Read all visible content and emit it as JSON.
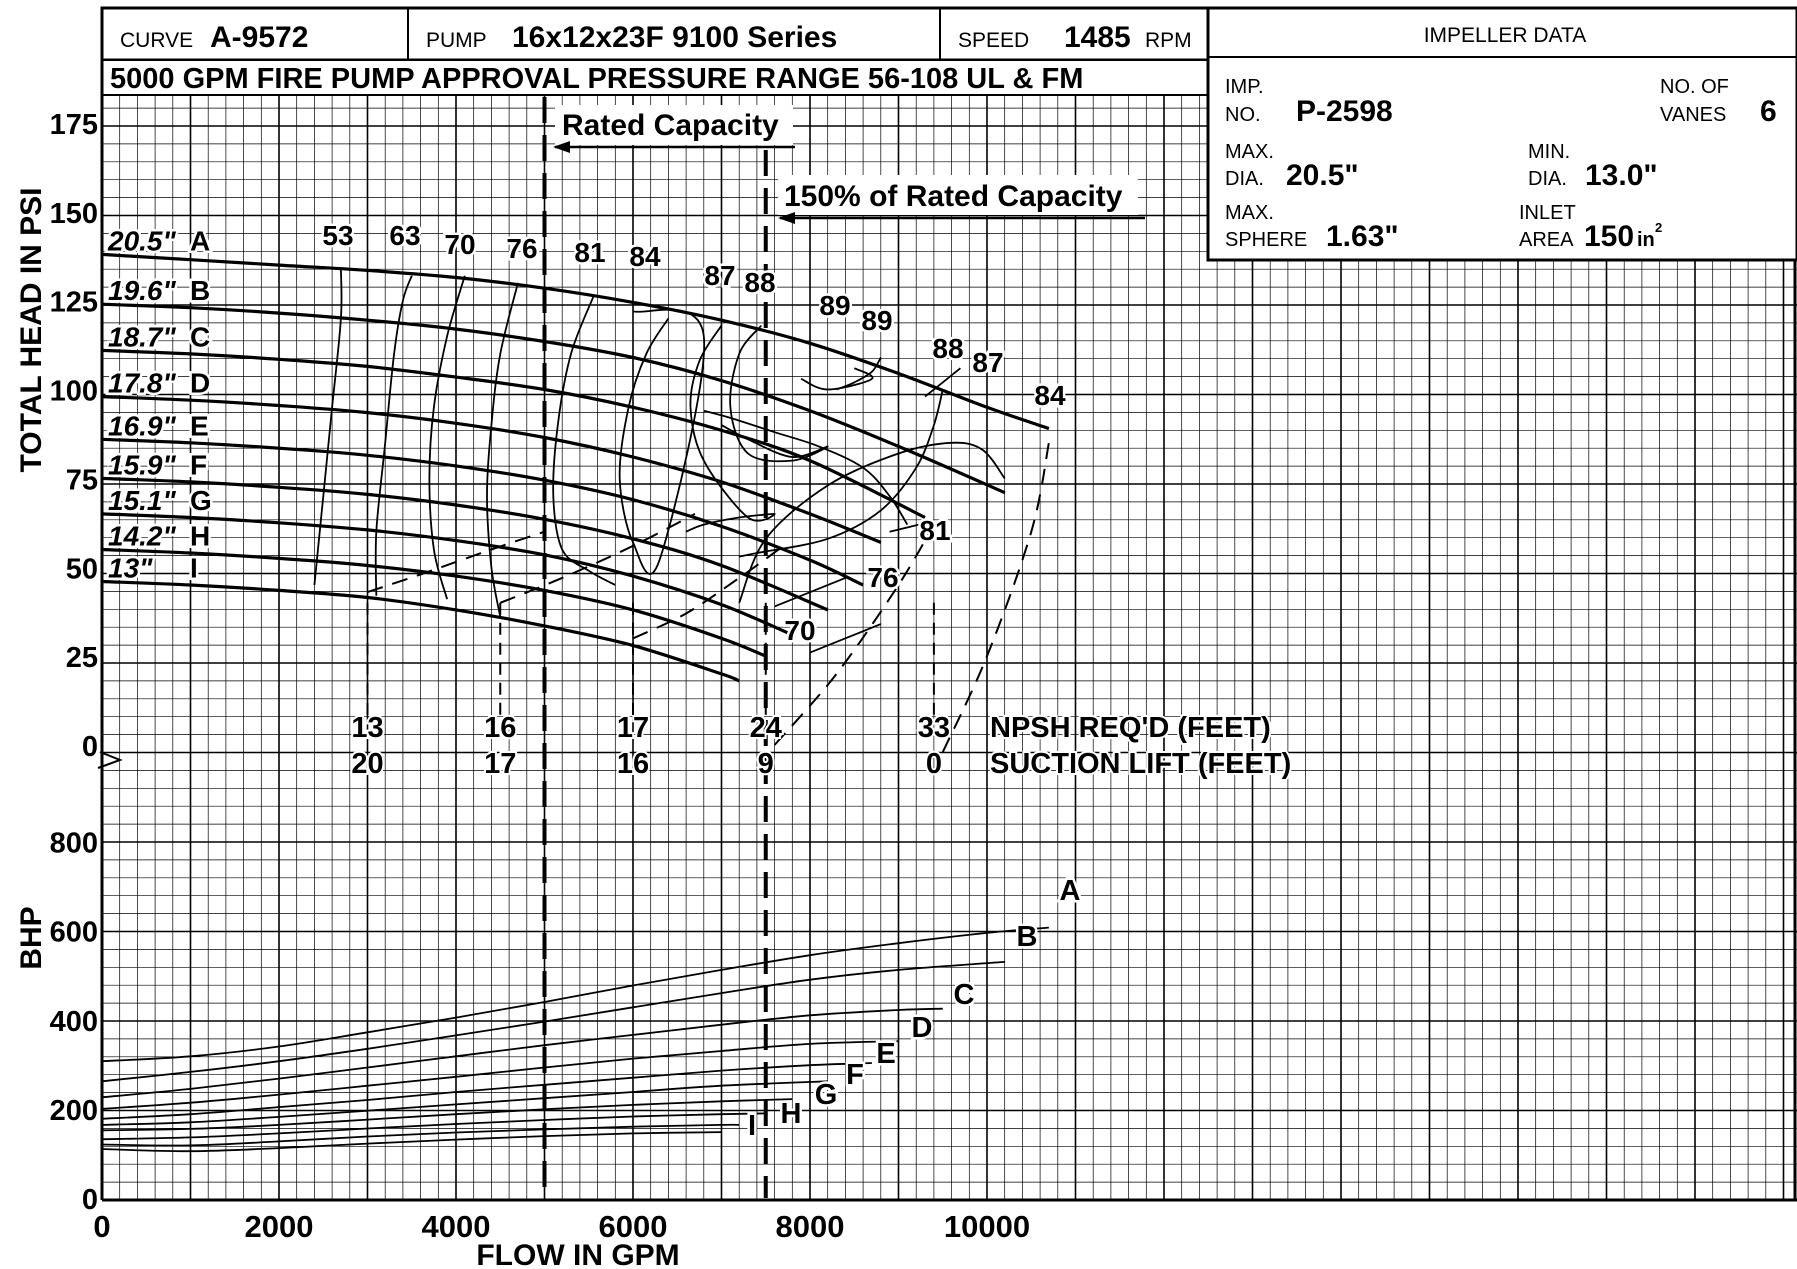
{
  "header": {
    "curve_label": "CURVE",
    "curve_value": "A-9572",
    "pump_label": "PUMP",
    "pump_value": "16x12x23F  9100 Series",
    "speed_label": "SPEED",
    "speed_value": "1485",
    "speed_unit": "RPM",
    "subtitle": "5000 GPM FIRE PUMP APPROVAL PRESSURE RANGE 56-108 UL & FM"
  },
  "impeller_data": {
    "title": "IMPELLER DATA",
    "imp_no_label_1": "IMP.",
    "imp_no_label_2": "NO.",
    "imp_no_value": "P-2598",
    "vanes_label_1": "NO. OF",
    "vanes_label_2": "VANES",
    "vanes_value": "6",
    "max_dia_label_1": "MAX.",
    "max_dia_label_2": "DIA.",
    "max_dia_value": "20.5\"",
    "min_dia_label_1": "MIN.",
    "min_dia_label_2": "DIA.",
    "min_dia_value": "13.0\"",
    "max_sphere_label_1": "MAX.",
    "max_sphere_label_2": "SPHERE",
    "max_sphere_value": "1.63\"",
    "inlet_label_1": "INLET",
    "inlet_label_2": "AREA",
    "inlet_value": "150",
    "inlet_unit": "in",
    "inlet_unit_sup": "2"
  },
  "chart_data": {
    "type": "line",
    "xlabel": "FLOW IN GPM",
    "ylabel_head": "TOTAL HEAD IN PSI",
    "ylabel_bhp": "BHP",
    "x_ticks": [
      "0",
      "2000",
      "4000",
      "6000",
      "8000",
      "10000"
    ],
    "head_ticks": [
      "0",
      "25",
      "50",
      "75",
      "100",
      "125",
      "150",
      "175"
    ],
    "bhp_ticks": [
      "0",
      "200",
      "400",
      "600",
      "800"
    ],
    "xlim": [
      0,
      19000
    ],
    "head_ylim": [
      0,
      185
    ],
    "bhp_ylim": [
      0,
      900
    ],
    "grid": true,
    "rated_capacity_gpm": 5000,
    "rated_capacity_label": "Rated Capacity",
    "capacity_150_gpm": 7500,
    "capacity_150_label": "150% of Rated Capacity",
    "head_series": [
      {
        "name": "A",
        "diameter": "20.5\"",
        "x": [
          0,
          1000,
          2000,
          3000,
          4000,
          5000,
          6000,
          7000,
          8000,
          9000,
          10000,
          10700
        ],
        "y": [
          138,
          136.5,
          135,
          133.5,
          131.5,
          128.5,
          124.5,
          119.5,
          113,
          104.5,
          95,
          89
        ]
      },
      {
        "name": "B",
        "diameter": "19.6\"",
        "x": [
          0,
          1000,
          2000,
          3000,
          4000,
          5000,
          6000,
          7000,
          8000,
          9000,
          10200
        ],
        "y": [
          124,
          123,
          121.5,
          119.5,
          117,
          113.5,
          109,
          102.5,
          94,
          84,
          71
        ]
      },
      {
        "name": "C",
        "diameter": "18.7\"",
        "x": [
          0,
          1000,
          2000,
          3000,
          4000,
          5000,
          6000,
          7000,
          8000,
          9300
        ],
        "y": [
          111,
          110,
          108.5,
          106.5,
          103.5,
          100,
          95,
          88.5,
          80,
          64
        ]
      },
      {
        "name": "D",
        "diameter": "17.8\"",
        "x": [
          0,
          1000,
          2000,
          3000,
          4000,
          5000,
          6000,
          7000,
          8000,
          8800
        ],
        "y": [
          98,
          97,
          95.5,
          93.5,
          90.5,
          86.5,
          81,
          74,
          65,
          57
        ]
      },
      {
        "name": "E",
        "diameter": "16.9\"",
        "x": [
          0,
          1000,
          2000,
          3000,
          4000,
          5000,
          6000,
          7000,
          8000,
          8600
        ],
        "y": [
          86,
          85,
          83.5,
          81.5,
          78.5,
          74.5,
          69,
          61.5,
          52,
          45
        ]
      },
      {
        "name": "F",
        "diameter": "15.9\"",
        "x": [
          0,
          1000,
          2000,
          3000,
          4000,
          5000,
          6000,
          7000,
          8200
        ],
        "y": [
          75,
          74,
          72.5,
          70.5,
          67.5,
          63.5,
          58,
          50.5,
          38
        ]
      },
      {
        "name": "G",
        "diameter": "15.1\"",
        "x": [
          0,
          1000,
          2000,
          3000,
          4000,
          5000,
          6000,
          7000,
          7800
        ],
        "y": [
          65,
          64,
          62.5,
          60.5,
          57.5,
          53.5,
          47.5,
          39.5,
          31
        ]
      },
      {
        "name": "H",
        "diameter": "14.2\"",
        "x": [
          0,
          1000,
          2000,
          3000,
          4000,
          5000,
          6000,
          7000,
          7500
        ],
        "y": [
          55,
          54,
          52.5,
          50.5,
          47.5,
          43.5,
          38,
          30,
          25
        ]
      },
      {
        "name": "I",
        "diameter": "13\"",
        "x": [
          0,
          1000,
          2000,
          3000,
          4000,
          5000,
          6000,
          7000,
          7200
        ],
        "y": [
          46,
          45,
          43.5,
          41.5,
          38,
          33.5,
          28,
          20,
          18
        ]
      }
    ],
    "efficiency_labels": [
      "53",
      "63",
      "70",
      "76",
      "81",
      "84",
      "87",
      "88",
      "89",
      "89",
      "88",
      "87",
      "84",
      "81",
      "76",
      "70"
    ],
    "efficiency_lines": [
      {
        "x": [
          2400,
          2500,
          2600,
          2700,
          2700
        ],
        "y": [
          45,
          70,
          95,
          120,
          134
        ]
      },
      {
        "x": [
          3100,
          3100,
          3200,
          3300,
          3400,
          3500
        ],
        "y": [
          42,
          60,
          85,
          110,
          125,
          132
        ]
      },
      {
        "x": [
          3900,
          3750,
          3700,
          3750,
          3900,
          4100
        ],
        "y": [
          41,
          55,
          75,
          95,
          115,
          132
        ]
      },
      {
        "x": [
          4500,
          4400,
          4350,
          4400,
          4500,
          4700
        ],
        "y": [
          36,
          50,
          70,
          90,
          110,
          130
        ]
      },
      {
        "x": [
          5800,
          5500,
          5200,
          5100,
          5150,
          5300,
          5550
        ],
        "y": [
          45,
          49,
          55,
          70,
          90,
          110,
          126
        ]
      },
      {
        "x": [
          6000,
          6800,
          6300,
          6000,
          5850,
          5950,
          6150,
          6400
        ],
        "y": [
          122,
          115,
          52,
          57,
          75,
          95,
          110,
          120
        ]
      },
      {
        "x": [
          6600,
          6800,
          7200,
          7600,
          7300,
          6800,
          6650,
          6750,
          7000
        ],
        "y": [
          60,
          62,
          64,
          65,
          64,
          80,
          95,
          108,
          118
        ]
      },
      {
        "x": [
          7000,
          7300,
          7800,
          8200,
          7800,
          7300,
          7100,
          7200,
          7450
        ],
        "y": [
          90,
          86,
          81,
          84,
          80,
          82,
          95,
          110,
          118
        ]
      },
      {
        "x": [
          7900,
          8200,
          8700,
          8500
        ],
        "y": [
          103,
          100,
          103,
          106
        ]
      },
      {
        "x": [
          8300,
          8500,
          8700,
          8800
        ],
        "y": [
          100,
          102,
          105,
          109
        ]
      },
      {
        "x": [
          9100,
          8900,
          8600,
          8100,
          7600,
          7100,
          6800
        ],
        "y": [
          62,
          70,
          78,
          84,
          88,
          92,
          94
        ]
      },
      {
        "x": [
          9500,
          9400,
          9200,
          8800,
          8200,
          7400,
          7200
        ],
        "y": [
          100,
          90,
          78,
          66,
          58,
          54,
          53
        ]
      },
      {
        "x": [
          10200,
          9950,
          9600,
          9000,
          8200,
          7500,
          7200
        ],
        "y": [
          75,
          83,
          85,
          82,
          73,
          58,
          40
        ]
      },
      {
        "x": [
          8900,
          9400
        ],
        "y": [
          60,
          63
        ]
      },
      {
        "x": [
          9300,
          9700
        ],
        "y": [
          98,
          106
        ]
      },
      {
        "x": [
          7600,
          8400
        ],
        "y": [
          39,
          47
        ]
      },
      {
        "x": [
          8000,
          8800
        ],
        "y": [
          26,
          34
        ]
      }
    ],
    "npsh_curves": [
      {
        "name": "NPSH 13",
        "x": [
          3000,
          3600,
          4400,
          5000
        ],
        "y": [
          43,
          48,
          55,
          60
        ]
      },
      {
        "name": "NPSH 16",
        "x": [
          4500,
          5200,
          6000,
          6700
        ],
        "y": [
          40,
          47,
          56,
          65
        ]
      },
      {
        "name": "NPSH 17",
        "x": [
          6000,
          6600,
          7200,
          7700
        ],
        "y": [
          30,
          37,
          47,
          56
        ]
      },
      {
        "name": "NPSH 24",
        "x": [
          7600,
          8300,
          9000,
          9400
        ],
        "y": [
          0,
          20,
          45,
          62
        ]
      },
      {
        "name": "NPSH 33",
        "x": [
          9500,
          10000,
          10500,
          10700
        ],
        "y": [
          -2,
          25,
          60,
          85
        ]
      }
    ],
    "npsh_title": "NPSH REQ'D (FEET)",
    "suction_title": "SUCTION LIFT (FEET)",
    "npsh_values": [
      "13",
      "16",
      "17",
      "24",
      "33"
    ],
    "suction_values": [
      "20",
      "17",
      "16",
      "9",
      "0"
    ],
    "npsh_x": [
      3000,
      4500,
      6000,
      7500,
      9400
    ],
    "bhp_series": [
      {
        "name": "A",
        "x": [
          0,
          1000,
          2000,
          3000,
          4000,
          5000,
          6000,
          7000,
          8000,
          9000,
          10000,
          10700
        ],
        "y": [
          307,
          318,
          340,
          372,
          405,
          440,
          477,
          512,
          545,
          572,
          595,
          607
        ]
      },
      {
        "name": "B",
        "x": [
          0,
          1000,
          2000,
          3000,
          4000,
          5000,
          6000,
          7000,
          8000,
          9000,
          10200
        ],
        "y": [
          262,
          283,
          307,
          335,
          365,
          396,
          428,
          460,
          490,
          512,
          530
        ]
      },
      {
        "name": "C",
        "x": [
          0,
          1000,
          2000,
          3000,
          4000,
          5000,
          6000,
          7000,
          8000,
          9000,
          9500
        ],
        "y": [
          226,
          245,
          268,
          293,
          318,
          343,
          366,
          389,
          410,
          422,
          425
        ]
      },
      {
        "name": "D",
        "x": [
          0,
          1000,
          2000,
          3000,
          4000,
          5000,
          6000,
          7000,
          8000,
          9000
        ],
        "y": [
          200,
          214,
          232,
          252,
          272,
          293,
          313,
          330,
          346,
          352
        ]
      },
      {
        "name": "E",
        "x": [
          0,
          1000,
          2000,
          3000,
          4000,
          5000,
          6000,
          7000,
          8000,
          8700
        ],
        "y": [
          178,
          188,
          204,
          220,
          238,
          254,
          270,
          286,
          298,
          303
        ]
      },
      {
        "name": "F",
        "x": [
          0,
          1000,
          2000,
          3000,
          4000,
          5000,
          6000,
          7000,
          8200
        ],
        "y": [
          164,
          170,
          182,
          196,
          210,
          224,
          238,
          252,
          262
        ]
      },
      {
        "name": "G",
        "x": [
          0,
          1000,
          2000,
          3000,
          4000,
          5000,
          6000,
          7000,
          7800
        ],
        "y": [
          152,
          155,
          164,
          176,
          188,
          199,
          209,
          217,
          222
        ]
      },
      {
        "name": "H",
        "x": [
          0,
          1000,
          2000,
          3000,
          4000,
          5000,
          6000,
          7000,
          7500
        ],
        "y": [
          132,
          136,
          145,
          156,
          166,
          175,
          183,
          188,
          190
        ]
      },
      {
        "name": "I",
        "x": [
          0,
          1000,
          2000,
          3000,
          4000,
          5000,
          6000,
          7000,
          7200
        ],
        "y": [
          120,
          118,
          127,
          138,
          147,
          154,
          160,
          164,
          164
        ]
      },
      {
        "name": "",
        "x": [
          0,
          1000,
          2000,
          3000,
          4000,
          5000,
          6000,
          7000
        ],
        "y": [
          110,
          105,
          112,
          122,
          131,
          139,
          145,
          148
        ]
      }
    ]
  }
}
